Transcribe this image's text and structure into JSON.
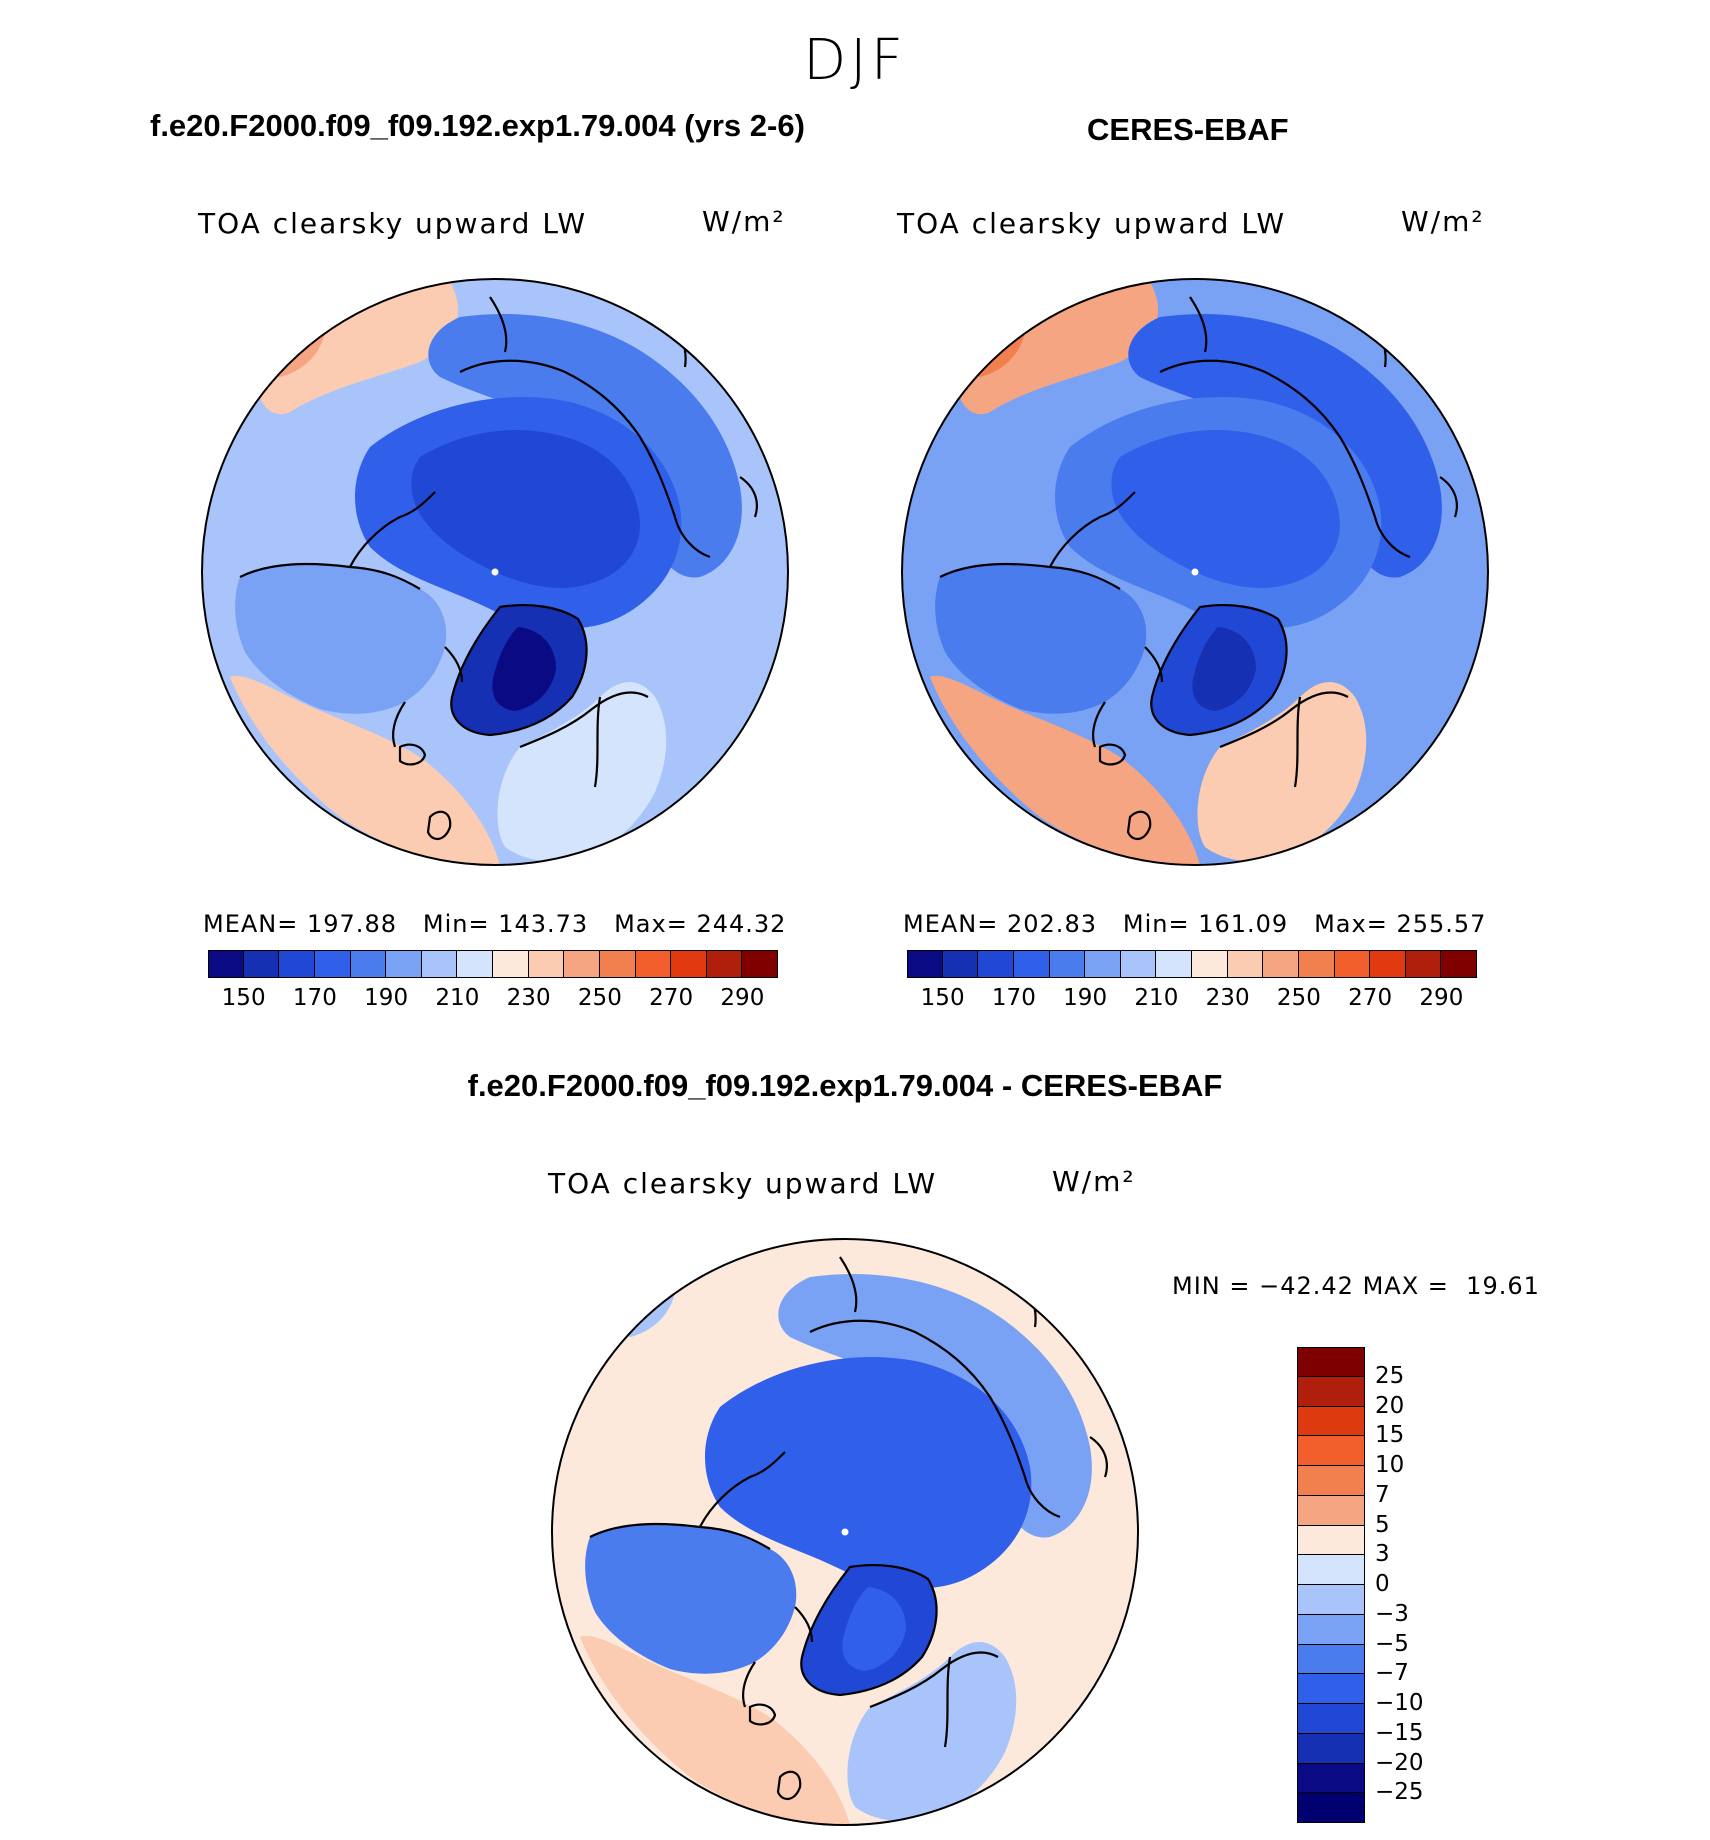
{
  "figure": {
    "season": "DJF",
    "panels": [
      {
        "id": "model",
        "case": "f.e20.F2000.f09_f09.192.exp1.79.004 (yrs 2-6)",
        "variable": "TOA clearsky upward LW",
        "units": "W/m²",
        "stats": {
          "mean_label": "MEAN=",
          "mean": "197.88",
          "min_label": "Min=",
          "min": "143.73",
          "max_label": "Max=",
          "max": "244.32"
        }
      },
      {
        "id": "obs",
        "case": "CERES-EBAF",
        "variable": "TOA clearsky upward LW",
        "units": "W/m²",
        "stats": {
          "mean_label": "MEAN=",
          "mean": "202.83",
          "min_label": "Min=",
          "min": "161.09",
          "max_label": "Max=",
          "max": "255.57"
        }
      },
      {
        "id": "diff",
        "case": "f.e20.F2000.f09_f09.192.exp1.79.004 - CERES-EBAF",
        "variable": "TOA clearsky upward LW",
        "units": "W/m²",
        "stats": {
          "min_label": "MIN =",
          "min": "−42.42",
          "max_label": "MAX =",
          "max": "19.61"
        }
      }
    ],
    "abs_colorbar": {
      "tick_labels": [
        "150",
        "170",
        "190",
        "210",
        "230",
        "250",
        "270",
        "290"
      ],
      "colors": [
        "#0a0a84",
        "#1630b4",
        "#2048d4",
        "#3060ea",
        "#4a7cee",
        "#7aa2f4",
        "#a8c4fa",
        "#d4e4fc",
        "#fde8dc",
        "#fbcbb2",
        "#f6a582",
        "#f2804e",
        "#f25f2c",
        "#e13a10",
        "#b01e0c",
        "#800000"
      ]
    },
    "diff_colorbar": {
      "labels": [
        "25",
        "20",
        "15",
        "10",
        "7",
        "5",
        "3",
        "0",
        "−3",
        "−5",
        "−7",
        "−10",
        "−15",
        "−20",
        "−25"
      ],
      "colors": [
        "#7e0000",
        "#b01e0c",
        "#dd3a10",
        "#f25f2c",
        "#f2804e",
        "#f6a582",
        "#fde8dc",
        "#d4e4fc",
        "#a8c4fa",
        "#7aa2f4",
        "#4a7cee",
        "#3060ea",
        "#2048d4",
        "#1630b4",
        "#0a0a84",
        "#000070"
      ]
    },
    "map_fields": {
      "model": {
        "ocean": "#a8c4fa",
        "low_lat_pacific": "#fbcbb2",
        "low_lat_atlantic": "#fbcbb2",
        "arctic": "#3060ea",
        "arctic_core": "#2048d4",
        "greenland": "#1630b4",
        "greenland_core": "#0a0a84",
        "siberia": "#4a7cee",
        "canada": "#7aa2f4",
        "europe": "#d4e4fc",
        "nw_pacific": "#f6a582"
      },
      "obs": {
        "ocean": "#7aa2f4",
        "low_lat_pacific": "#f6a582",
        "low_lat_atlantic": "#f6a582",
        "arctic": "#4a7cee",
        "arctic_core": "#3060ea",
        "greenland": "#2048d4",
        "greenland_core": "#1630b4",
        "siberia": "#3060ea",
        "canada": "#4a7cee",
        "europe": "#fbcbb2",
        "nw_pacific": "#f2804e"
      },
      "diff": {
        "ocean": "#fde8dc",
        "low_lat_pacific": "#fde8dc",
        "low_lat_atlantic": "#fbcbb2",
        "arctic": "#3060ea",
        "arctic_core": "#3060ea",
        "greenland": "#2048d4",
        "greenland_core": "#3060ea",
        "siberia": "#7aa2f4",
        "canada": "#4a7cee",
        "europe": "#a8c4fa",
        "nw_pacific": "#a8c4fa"
      }
    }
  }
}
